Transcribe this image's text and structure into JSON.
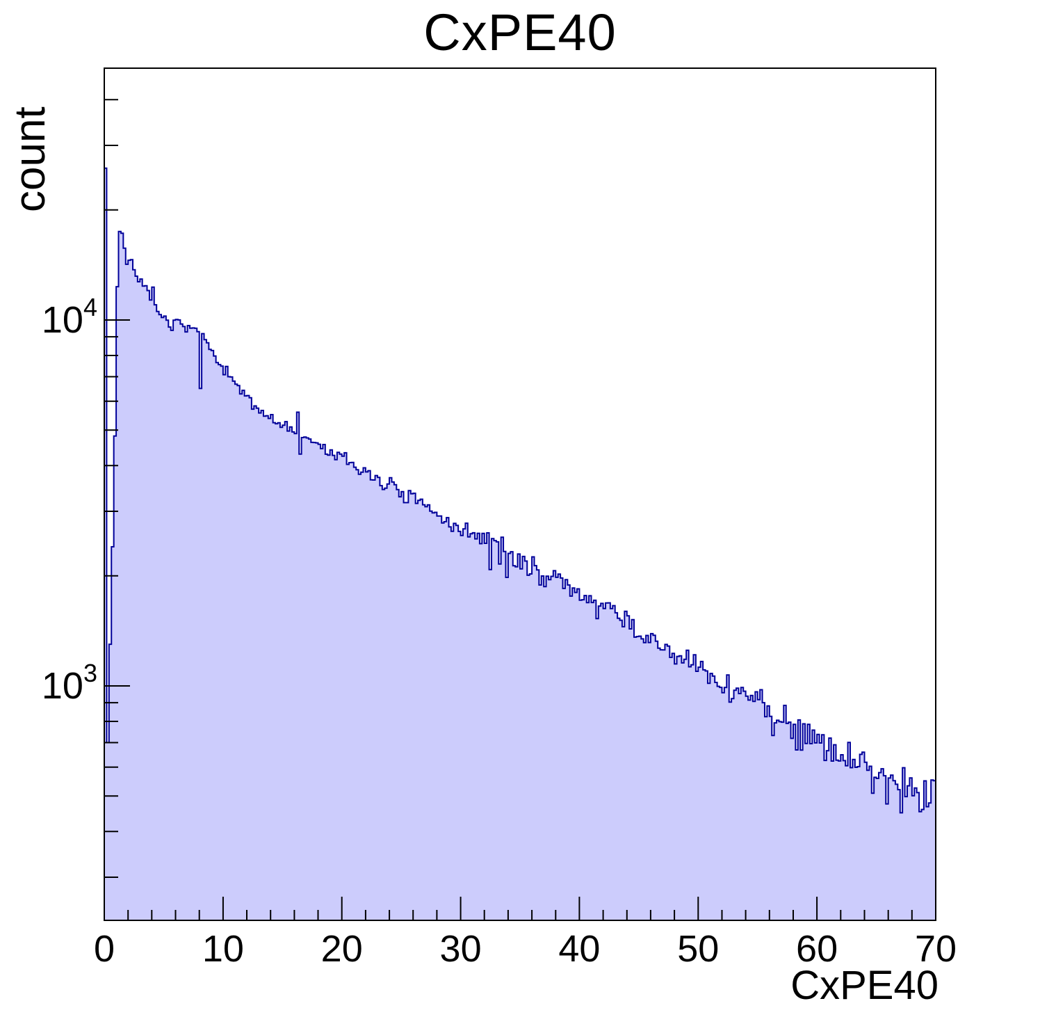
{
  "title": "CxPE40",
  "axes": {
    "x": {
      "title": "CxPE40",
      "min": 0,
      "max": 70,
      "major_tick_labels": [
        "0",
        "10",
        "20",
        "30",
        "40",
        "50",
        "60",
        "70"
      ],
      "major_tick_values": [
        0,
        10,
        20,
        30,
        40,
        50,
        60,
        70
      ],
      "minor_tick_step": 2
    },
    "y": {
      "title": "count",
      "scale": "log",
      "major_ticks": [
        {
          "mantissa": "10",
          "exponent": "3",
          "value": 1000
        },
        {
          "mantissa": "10",
          "exponent": "4",
          "value": 10000
        }
      ],
      "minor_tick_values": [
        300,
        400,
        500,
        600,
        700,
        800,
        900,
        2000,
        3000,
        4000,
        5000,
        6000,
        7000,
        8000,
        9000,
        20000,
        30000,
        40000
      ],
      "display_min": 229,
      "display_max": 48800
    }
  },
  "chart_data": {
    "type": "histogram",
    "series_name": "CxPE40",
    "title": "CxPE40",
    "xlabel": "CxPE40",
    "ylabel": "count",
    "y_scale": "log",
    "x_range": [
      0,
      70
    ],
    "bin_width": 0.2,
    "n_bins": 350,
    "grid": false,
    "legend": false,
    "anchors": [
      [
        0.9,
        4800
      ],
      [
        1.0,
        8500
      ],
      [
        1.1,
        12500
      ],
      [
        1.2,
        15800
      ],
      [
        1.35,
        18500
      ],
      [
        1.5,
        17200
      ],
      [
        1.7,
        15300
      ],
      [
        1.9,
        14400
      ],
      [
        2.2,
        15000
      ],
      [
        2.5,
        13700
      ],
      [
        3.0,
        12800
      ],
      [
        3.5,
        12000
      ],
      [
        4.0,
        11300
      ],
      [
        4.5,
        10600
      ],
      [
        5.0,
        10100
      ],
      [
        5.6,
        9400
      ],
      [
        6.2,
        9900
      ],
      [
        7.0,
        9700
      ],
      [
        7.6,
        9400
      ],
      [
        8.4,
        9000
      ],
      [
        9.2,
        7900
      ],
      [
        10,
        7300
      ],
      [
        11,
        6700
      ],
      [
        12,
        6100
      ],
      [
        13,
        5700
      ],
      [
        14,
        5400
      ],
      [
        15,
        5200
      ],
      [
        16,
        5000
      ],
      [
        17,
        4760
      ],
      [
        19,
        4350
      ],
      [
        21,
        4000
      ],
      [
        23,
        3700
      ],
      [
        26,
        3200
      ],
      [
        30,
        2690
      ],
      [
        34,
        2270
      ],
      [
        38,
        1950
      ],
      [
        42,
        1640
      ],
      [
        46,
        1330
      ],
      [
        50,
        1110
      ],
      [
        53,
        980
      ],
      [
        56,
        860
      ],
      [
        60,
        720
      ],
      [
        64,
        590
      ],
      [
        67,
        540
      ],
      [
        70,
        510
      ]
    ],
    "spike_bins": [
      [
        0.1,
        26000
      ],
      [
        0.3,
        700
      ],
      [
        0.5,
        1300
      ],
      [
        0.7,
        2400
      ],
      [
        4.1,
        12300
      ],
      [
        8.1,
        6500
      ],
      [
        16.3,
        5600
      ],
      [
        16.5,
        4300
      ],
      [
        32.3,
        2620
      ],
      [
        32.5,
        2080
      ],
      [
        33.5,
        2550
      ],
      [
        33.9,
        1980
      ],
      [
        63.7,
        650
      ],
      [
        67.1,
        450
      ]
    ],
    "noise_rel_coeff": 1.6,
    "noise_seed": 7,
    "colors": {
      "fill": "#ccccfc",
      "line": "#000099",
      "axis": "#000000",
      "text": "#000000",
      "background": "#ffffff"
    }
  }
}
